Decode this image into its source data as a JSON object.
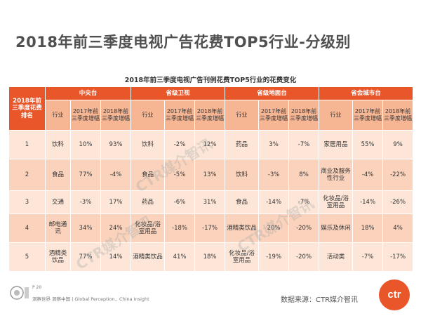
{
  "page": {
    "title": "2018年前三季度电视广告花费TOP5行业-分级别",
    "table_title": "2018年前三季度电视广告刊例花费TOP5行业的花费变化",
    "page_number": "P 20",
    "slogan": "洞察世界 洞察中国 | Global Perception，China Insight",
    "source": "数据来源：CTR媒介智讯",
    "watermark": "CTR媒介智讯",
    "logo_text": "ctr"
  },
  "table": {
    "rank_header": "2018年前三季度花费排名",
    "groups": [
      "中央台",
      "省级卫视",
      "省级地面台",
      "省会城市台"
    ],
    "sub_headers": [
      "行业",
      "2017年前三季度增幅",
      "2018年前三季度增幅"
    ],
    "rows": [
      {
        "rank": "1",
        "cells": [
          [
            "饮料",
            "10%",
            "93%"
          ],
          [
            "饮料",
            "-2%",
            "12%"
          ],
          [
            "药品",
            "3%",
            "-7%"
          ],
          [
            "家居用品",
            "55%",
            "9%"
          ]
        ]
      },
      {
        "rank": "2",
        "cells": [
          [
            "食品",
            "77%",
            "-4%"
          ],
          [
            "食品",
            "-5%",
            "13%"
          ],
          [
            "饮料",
            "-3%",
            "8%"
          ],
          [
            "商业及服务性行业",
            "-4%",
            "-22%"
          ]
        ]
      },
      {
        "rank": "3",
        "cells": [
          [
            "交通",
            "-3%",
            "17%"
          ],
          [
            "药品",
            "-6%",
            "31%"
          ],
          [
            "食品",
            "-14%",
            "-7%"
          ],
          [
            "化妆品/浴室用品",
            "-14%",
            "-26%"
          ]
        ]
      },
      {
        "rank": "4",
        "cells": [
          [
            "邮电通讯",
            "34%",
            "24%"
          ],
          [
            "化妆品/浴室用品",
            "-18%",
            "-17%"
          ],
          [
            "酒精类饮品",
            "20%",
            "-20%"
          ],
          [
            "娱乐及休闲",
            "18%",
            "4%"
          ]
        ]
      },
      {
        "rank": "5",
        "cells": [
          [
            "酒精类饮品",
            "77%",
            "14%"
          ],
          [
            "酒精类饮品",
            "41%",
            "18%"
          ],
          [
            "化妆品/浴室用品",
            "-19%",
            "-20%"
          ],
          [
            "活动类",
            "-7%",
            "-17%"
          ]
        ]
      }
    ]
  }
}
